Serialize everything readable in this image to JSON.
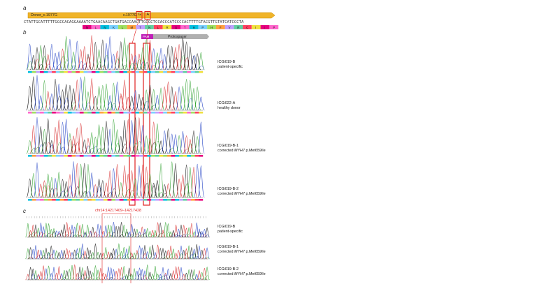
{
  "panels": {
    "a": "a",
    "b": "b",
    "c": "c"
  },
  "donor_bar": {
    "label": "Donor_c.1977G",
    "marker_label": "c.1977G",
    "box1": "G",
    "box2": "A"
  },
  "reference_sequence": "CTATTGCATTTTTGGCCACAGGAAAATCTGAACAAGCTGATGACCAACTTGCGCTCCACCCATCCCCACTTTTGTACGTTGTATCATCCCTA",
  "aa_track": "N  L  N  K  L  M  T  N  L  R  S  T  H  P  H  F  V  R  C  I  I  P",
  "guide": {
    "pam": "PAM",
    "protospacer": "Protospacer"
  },
  "panel_b_samples": [
    {
      "id": "ICGi019-B",
      "desc": "patient-specific"
    },
    {
      "id": "ICGi022-A",
      "desc": "healthy donor"
    },
    {
      "id": "ICGi019-B-1",
      "desc_prefix": "corrected ",
      "gene": "MYH7",
      "desc_suffix": " p.Met659Ile"
    },
    {
      "id": "ICGi019-B-2",
      "desc_prefix": "corrected ",
      "gene": "MYH7",
      "desc_suffix": " p.Met659Ile"
    }
  ],
  "panel_c": {
    "coordinate": "chr14:14217409–14217428",
    "samples": [
      {
        "id": "ICGi019-B",
        "desc": "patient-specific"
      },
      {
        "id": "ICGi019-B-1",
        "desc_prefix": "corrected ",
        "gene": "MYH7",
        "desc_suffix": " p.Met659Ile"
      },
      {
        "id": "ICGi019-B-2",
        "desc_prefix": "corrected ",
        "gene": "MYH7",
        "desc_suffix": " p.Met659Ile"
      }
    ]
  },
  "colors": {
    "A": "#2ca02c",
    "C": "#1f3fc4",
    "G": "#111111",
    "T": "#d62728",
    "donor_arrow": "#f0b429",
    "pam": "#c020b8",
    "protospacer": "#b0b0b0",
    "highlight": "#e02020",
    "aa_palette": [
      "#e6007e",
      "#ff66cc",
      "#00c0e0",
      "#7ad1ff",
      "#a0e060",
      "#ffa040",
      "#c0a0ff",
      "#60d0a0",
      "#ff4060",
      "#f0e040"
    ]
  }
}
